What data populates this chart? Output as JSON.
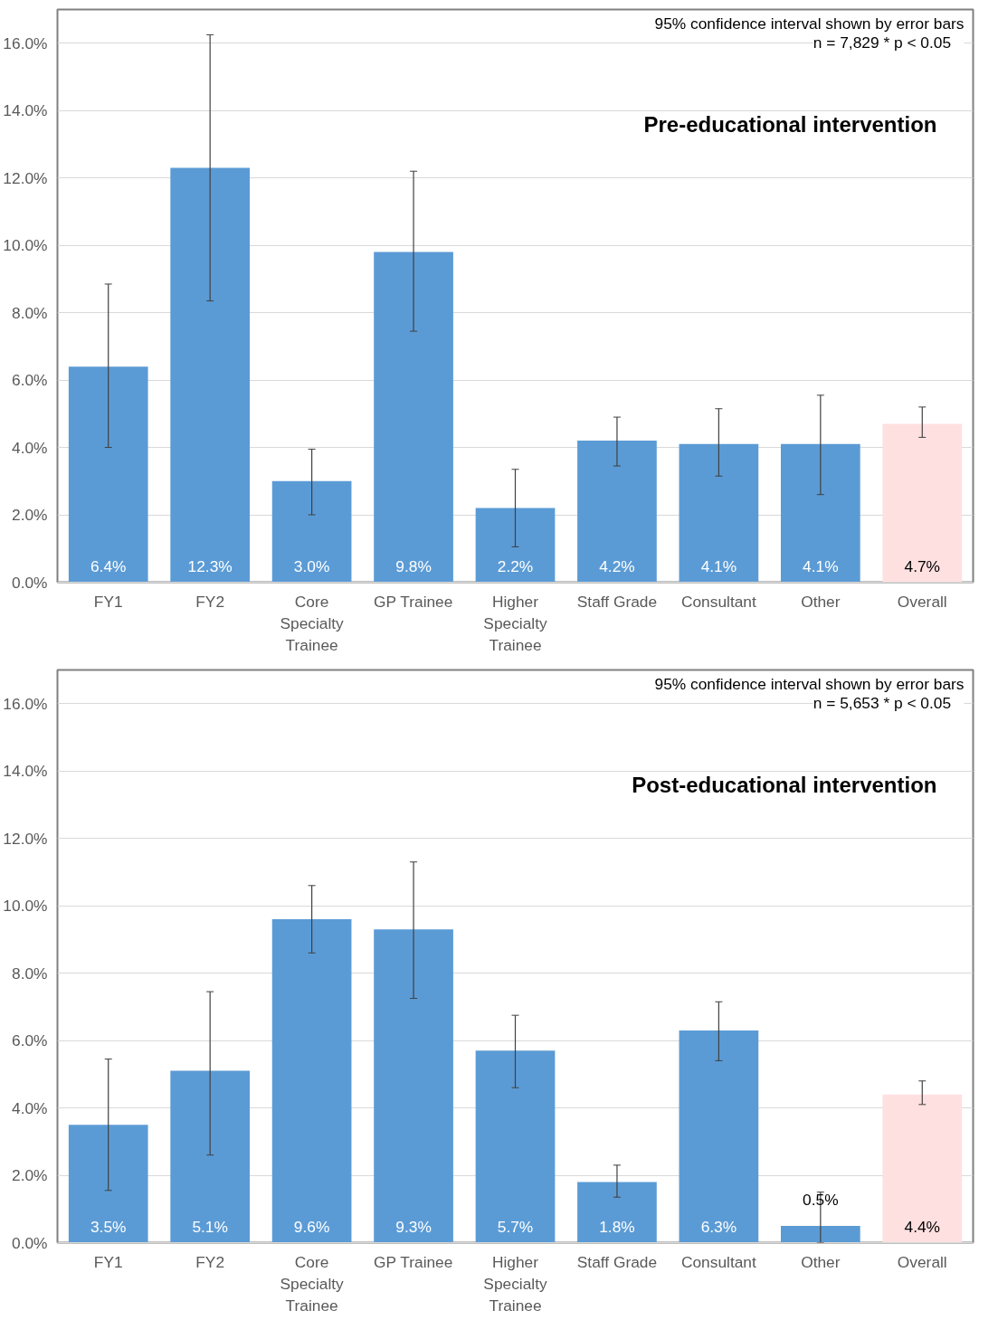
{
  "chart_data": [
    {
      "type": "bar",
      "title": "Pre-educational intervention",
      "categories": [
        "FY1",
        "FY2",
        "Core Specialty Trainee",
        "GP Trainee",
        "Higher Specialty Trainee",
        "Staff Grade",
        "Consultant",
        "Other",
        "Overall"
      ],
      "values": [
        6.4,
        12.3,
        3.0,
        9.8,
        2.2,
        4.2,
        4.1,
        4.1,
        4.7
      ],
      "value_labels": [
        "6.4%",
        "12.3%",
        "3.0%",
        "9.8%",
        "2.2%",
        "4.2%",
        "4.1%",
        "4.1%",
        "4.7%"
      ],
      "colors": [
        "#5b9bd5",
        "#5b9bd5",
        "#5b9bd5",
        "#5b9bd5",
        "#5b9bd5",
        "#5b9bd5",
        "#5b9bd5",
        "#5b9bd5",
        "#ffe0e0"
      ],
      "errors": [
        [
          4.0,
          8.85
        ],
        [
          8.35,
          16.25
        ],
        [
          2.0,
          3.95
        ],
        [
          7.45,
          12.2
        ],
        [
          1.05,
          3.35
        ],
        [
          3.45,
          4.9
        ],
        [
          3.15,
          5.15
        ],
        [
          2.6,
          5.55
        ],
        [
          4.3,
          5.2
        ]
      ],
      "annotations": [
        "95% confidence interval shown by error bars",
        "n = 7,829    * p < 0.05"
      ],
      "ylim": [
        0,
        17
      ],
      "yticks": [
        {
          "value": 0,
          "label": "0.0%"
        },
        {
          "value": 2,
          "label": "2.0%"
        },
        {
          "value": 4,
          "label": "4.0%"
        },
        {
          "value": 6,
          "label": "6.0%"
        },
        {
          "value": 8,
          "label": "8.0%"
        },
        {
          "value": 10,
          "label": "10.0%"
        },
        {
          "value": 12,
          "label": "12.0%"
        },
        {
          "value": 14,
          "label": "14.0%"
        },
        {
          "value": 16,
          "label": "16.0%"
        }
      ],
      "grid": "y"
    },
    {
      "type": "bar",
      "title": "Post-educational intervention",
      "categories": [
        "FY1",
        "FY2",
        "Core Specialty Trainee",
        "GP Trainee",
        "Higher Specialty Trainee",
        "Staff Grade",
        "Consultant",
        "Other",
        "Overall"
      ],
      "values": [
        3.5,
        5.1,
        9.6,
        9.3,
        5.7,
        1.8,
        6.3,
        0.5,
        4.4
      ],
      "value_labels": [
        "3.5%",
        "5.1%",
        "9.6%",
        "9.3%",
        "5.7%",
        "1.8%",
        "6.3%",
        "0.5%",
        "4.4%"
      ],
      "colors": [
        "#5b9bd5",
        "#5b9bd5",
        "#5b9bd5",
        "#5b9bd5",
        "#5b9bd5",
        "#5b9bd5",
        "#5b9bd5",
        "#5b9bd5",
        "#ffe0e0"
      ],
      "errors": [
        [
          1.55,
          5.45
        ],
        [
          2.6,
          7.45
        ],
        [
          8.6,
          10.6
        ],
        [
          7.25,
          11.3
        ],
        [
          4.6,
          6.75
        ],
        [
          1.35,
          2.3
        ],
        [
          5.4,
          7.15
        ],
        [
          0.0,
          1.5
        ],
        [
          4.1,
          4.8
        ]
      ],
      "annotations": [
        "95% confidence interval shown by error bars",
        "n = 5,653    * p < 0.05"
      ],
      "ylim": [
        0,
        17
      ],
      "yticks": [
        {
          "value": 0,
          "label": "0.0%"
        },
        {
          "value": 2,
          "label": "2.0%"
        },
        {
          "value": 4,
          "label": "4.0%"
        },
        {
          "value": 6,
          "label": "6.0%"
        },
        {
          "value": 8,
          "label": "8.0%"
        },
        {
          "value": 10,
          "label": "10.0%"
        },
        {
          "value": 12,
          "label": "12.0%"
        },
        {
          "value": 14,
          "label": "14.0%"
        },
        {
          "value": 16,
          "label": "16.0%"
        }
      ],
      "grid": "y"
    }
  ]
}
